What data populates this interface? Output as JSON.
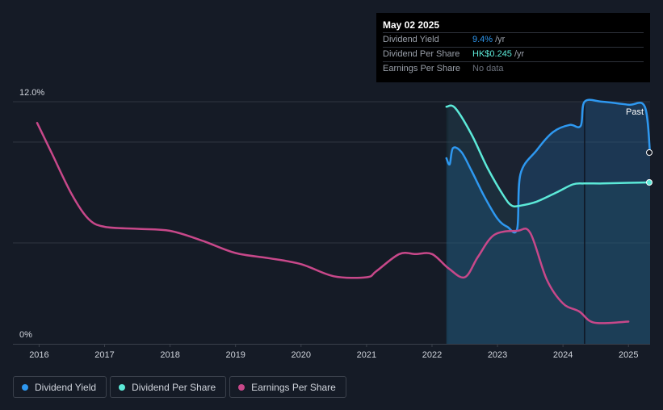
{
  "tooltip": {
    "date": "May 02 2025",
    "rows": [
      {
        "label": "Dividend Yield",
        "value": "9.4%",
        "unit": "/yr"
      },
      {
        "label": "Dividend Per Share",
        "value": "HK$0.245",
        "unit": "/yr"
      },
      {
        "label": "Earnings Per Share",
        "value": "No data",
        "unit": ""
      }
    ]
  },
  "legend": {
    "items": [
      {
        "label": "Dividend Yield",
        "color": "#2e98f0"
      },
      {
        "label": "Dividend Per Share",
        "color": "#5ce9d8"
      },
      {
        "label": "Earnings Per Share",
        "color": "#c8488a"
      }
    ]
  },
  "chart_data": {
    "type": "line",
    "title": "",
    "xlabel": "",
    "ylabel": "",
    "y_tick_labels": [
      "12.0%",
      "0%"
    ],
    "ylim": [
      0,
      12
    ],
    "xlim": [
      2015.6,
      2025.33
    ],
    "x_ticks": [
      2016,
      2017,
      2018,
      2019,
      2020,
      2021,
      2022,
      2023,
      2024,
      2025
    ],
    "past_label": "Past",
    "past_region_start": 2022.25,
    "future_marker": 2024.33,
    "grid": true,
    "legend_position": "bottom-left",
    "series": [
      {
        "name": "Dividend Yield",
        "color": "#2e98f0",
        "axis": "left",
        "points": [
          [
            2022.22,
            9.2
          ],
          [
            2022.27,
            8.9
          ],
          [
            2022.32,
            9.7
          ],
          [
            2022.45,
            9.5
          ],
          [
            2022.6,
            8.6
          ],
          [
            2022.8,
            7.3
          ],
          [
            2023.0,
            6.2
          ],
          [
            2023.15,
            5.8
          ],
          [
            2023.3,
            5.7
          ],
          [
            2023.35,
            8.4
          ],
          [
            2023.6,
            9.6
          ],
          [
            2023.85,
            10.5
          ],
          [
            2024.1,
            10.85
          ],
          [
            2024.27,
            10.8
          ],
          [
            2024.33,
            12.0
          ],
          [
            2024.6,
            12.0
          ],
          [
            2025.0,
            11.85
          ],
          [
            2025.25,
            11.75
          ],
          [
            2025.33,
            9.4
          ]
        ]
      },
      {
        "name": "Dividend Per Share",
        "color": "#5ce9d8",
        "axis": "right",
        "points": [
          [
            2022.22,
            11.75
          ],
          [
            2022.35,
            11.7
          ],
          [
            2022.6,
            10.4
          ],
          [
            2022.85,
            8.7
          ],
          [
            2023.1,
            7.3
          ],
          [
            2023.22,
            6.85
          ],
          [
            2023.35,
            6.85
          ],
          [
            2023.6,
            7.05
          ],
          [
            2023.9,
            7.5
          ],
          [
            2024.15,
            7.9
          ],
          [
            2024.32,
            7.95
          ],
          [
            2024.6,
            7.95
          ],
          [
            2025.0,
            7.98
          ],
          [
            2025.33,
            8.0
          ]
        ]
      },
      {
        "name": "Earnings Per Share",
        "color": "#c8488a",
        "axis": "left",
        "points": [
          [
            2015.97,
            10.95
          ],
          [
            2016.2,
            9.4
          ],
          [
            2016.5,
            7.4
          ],
          [
            2016.75,
            6.2
          ],
          [
            2017.0,
            5.8
          ],
          [
            2017.5,
            5.7
          ],
          [
            2018.0,
            5.6
          ],
          [
            2018.5,
            5.1
          ],
          [
            2019.0,
            4.5
          ],
          [
            2019.5,
            4.25
          ],
          [
            2020.0,
            3.95
          ],
          [
            2020.5,
            3.35
          ],
          [
            2021.0,
            3.3
          ],
          [
            2021.15,
            3.6
          ],
          [
            2021.5,
            4.45
          ],
          [
            2021.75,
            4.45
          ],
          [
            2022.0,
            4.45
          ],
          [
            2022.25,
            3.75
          ],
          [
            2022.5,
            3.3
          ],
          [
            2022.7,
            4.3
          ],
          [
            2022.95,
            5.4
          ],
          [
            2023.3,
            5.6
          ],
          [
            2023.5,
            5.5
          ],
          [
            2023.75,
            3.2
          ],
          [
            2024.0,
            2.0
          ],
          [
            2024.25,
            1.6
          ],
          [
            2024.48,
            1.05
          ],
          [
            2025.0,
            1.1
          ]
        ]
      }
    ]
  }
}
